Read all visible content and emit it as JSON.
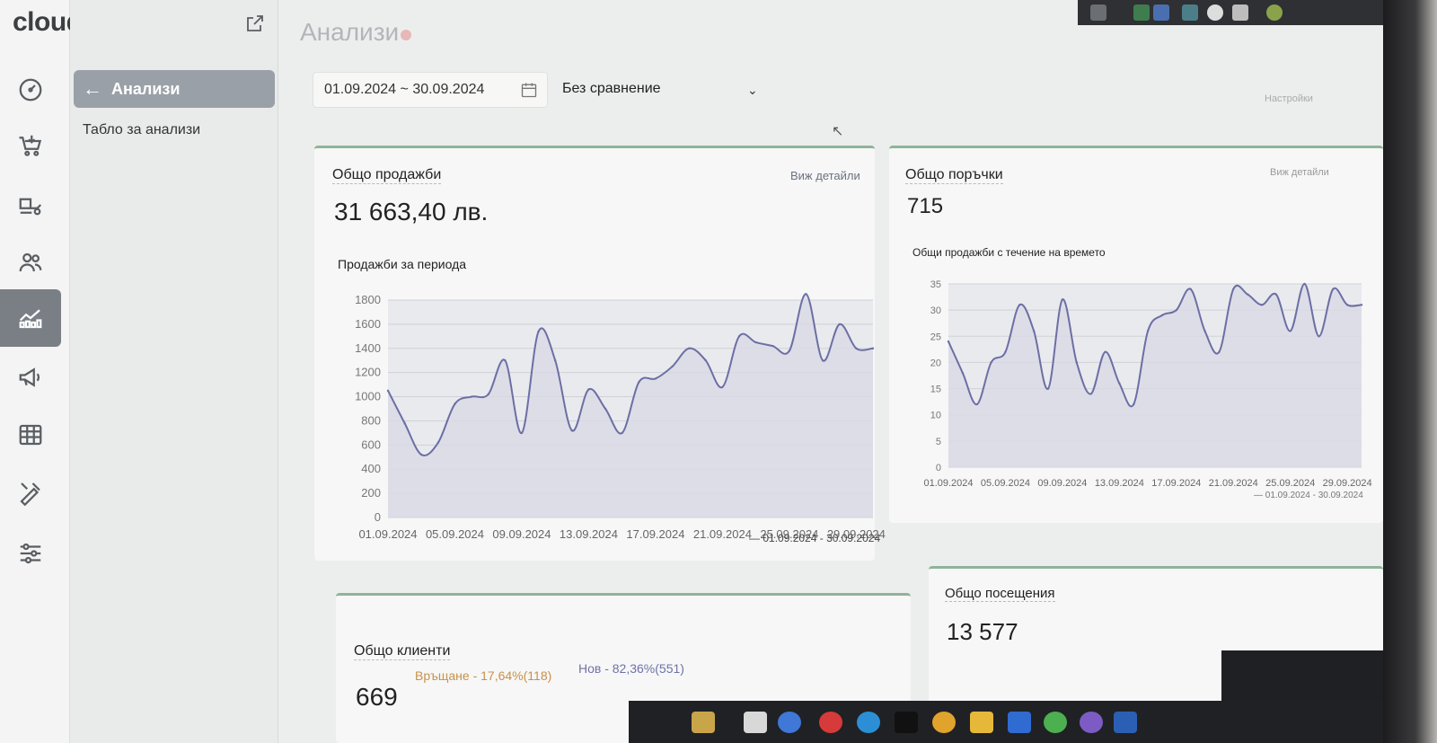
{
  "brand": {
    "logo_text": "cloudcart"
  },
  "rail": [
    {
      "name": "dashboard-icon"
    },
    {
      "name": "cart-icon"
    },
    {
      "name": "shipping-icon"
    },
    {
      "name": "customers-icon"
    },
    {
      "name": "analytics-icon",
      "active": true
    },
    {
      "name": "megaphone-icon"
    },
    {
      "name": "table-icon"
    },
    {
      "name": "design-icon"
    },
    {
      "name": "sliders-icon"
    }
  ],
  "subnav": {
    "back_label": "Анализи",
    "item_label": "Табло за анализи"
  },
  "page": {
    "title": "Анализи"
  },
  "filters": {
    "date_range": "01.09.2024 ~ 30.09.2024",
    "compare": "Без сравнение",
    "settings": "Настройки"
  },
  "cards": {
    "sales": {
      "title": "Общо продажби",
      "link": "Виж детайли",
      "value": "31 663,40 лв.",
      "chart_title": "Продажби за периода",
      "legend": "01.09.2024 - 30.09.2024"
    },
    "orders": {
      "title": "Общо поръчки",
      "link": "Виж детайли",
      "value": "715",
      "chart_title": "Общи продажби с течение на времето",
      "legend": "01.09.2024 - 30.09.2024"
    },
    "customers": {
      "title": "Общо клиенти",
      "value": "669",
      "returning": "Връщане - 17,64%(118)",
      "new": "Нов - 82,36%(551)"
    },
    "visits": {
      "title": "Общо посещения",
      "value": "13 577"
    }
  },
  "chart_data": [
    {
      "type": "area",
      "x": [
        "01.09.2024",
        "02.09.2024",
        "03.09.2024",
        "04.09.2024",
        "05.09.2024",
        "06.09.2024",
        "07.09.2024",
        "08.09.2024",
        "09.09.2024",
        "10.09.2024",
        "11.09.2024",
        "12.09.2024",
        "13.09.2024",
        "14.09.2024",
        "15.09.2024",
        "16.09.2024",
        "17.09.2024",
        "18.09.2024",
        "19.09.2024",
        "20.09.2024",
        "21.09.2024",
        "22.09.2024",
        "23.09.2024",
        "24.09.2024",
        "25.09.2024",
        "26.09.2024",
        "27.09.2024",
        "28.09.2024",
        "29.09.2024",
        "30.09.2024"
      ],
      "series": [
        {
          "values": [
            1050,
            780,
            520,
            620,
            940,
            1000,
            1020,
            1300,
            700,
            1540,
            1300,
            720,
            1060,
            900,
            700,
            1120,
            1150,
            1250,
            1400,
            1300,
            1080,
            1500,
            1450,
            1420,
            1380,
            1850,
            1300,
            1600,
            1400,
            1400
          ]
        }
      ],
      "ylim": [
        0,
        1800
      ],
      "yticks": [
        0,
        200,
        400,
        600,
        800,
        1000,
        1200,
        1400,
        1600,
        1800
      ],
      "xticks": [
        "01.09.2024",
        "05.09.2024",
        "09.09.2024",
        "13.09.2024",
        "17.09.2024",
        "21.09.2024",
        "25.09.2024",
        "29.09.2024"
      ],
      "grid": true,
      "legend_position": "bottom-right"
    },
    {
      "type": "area",
      "x": [
        "01.09.2024",
        "02.09.2024",
        "03.09.2024",
        "04.09.2024",
        "05.09.2024",
        "06.09.2024",
        "07.09.2024",
        "08.09.2024",
        "09.09.2024",
        "10.09.2024",
        "11.09.2024",
        "12.09.2024",
        "13.09.2024",
        "14.09.2024",
        "15.09.2024",
        "16.09.2024",
        "17.09.2024",
        "18.09.2024",
        "19.09.2024",
        "20.09.2024",
        "21.09.2024",
        "22.09.2024",
        "23.09.2024",
        "24.09.2024",
        "25.09.2024",
        "26.09.2024",
        "27.09.2024",
        "28.09.2024",
        "29.09.2024",
        "30.09.2024"
      ],
      "series": [
        {
          "values": [
            24,
            18,
            12,
            20,
            22,
            31,
            26,
            15,
            32,
            20,
            14,
            22,
            16,
            12,
            26,
            29,
            30,
            34,
            26,
            22,
            34,
            33,
            31,
            33,
            26,
            35,
            25,
            34,
            31,
            31
          ]
        }
      ],
      "ylim": [
        0,
        35
      ],
      "yticks": [
        0,
        5,
        10,
        15,
        20,
        25,
        30,
        35
      ],
      "xticks": [
        "01.09.2024",
        "05.09.2024",
        "09.09.2024",
        "13.09.2024",
        "17.09.2024",
        "21.09.2024",
        "25.09.2024",
        "29.09.2024"
      ],
      "grid": true,
      "legend_position": "bottom-right"
    }
  ]
}
